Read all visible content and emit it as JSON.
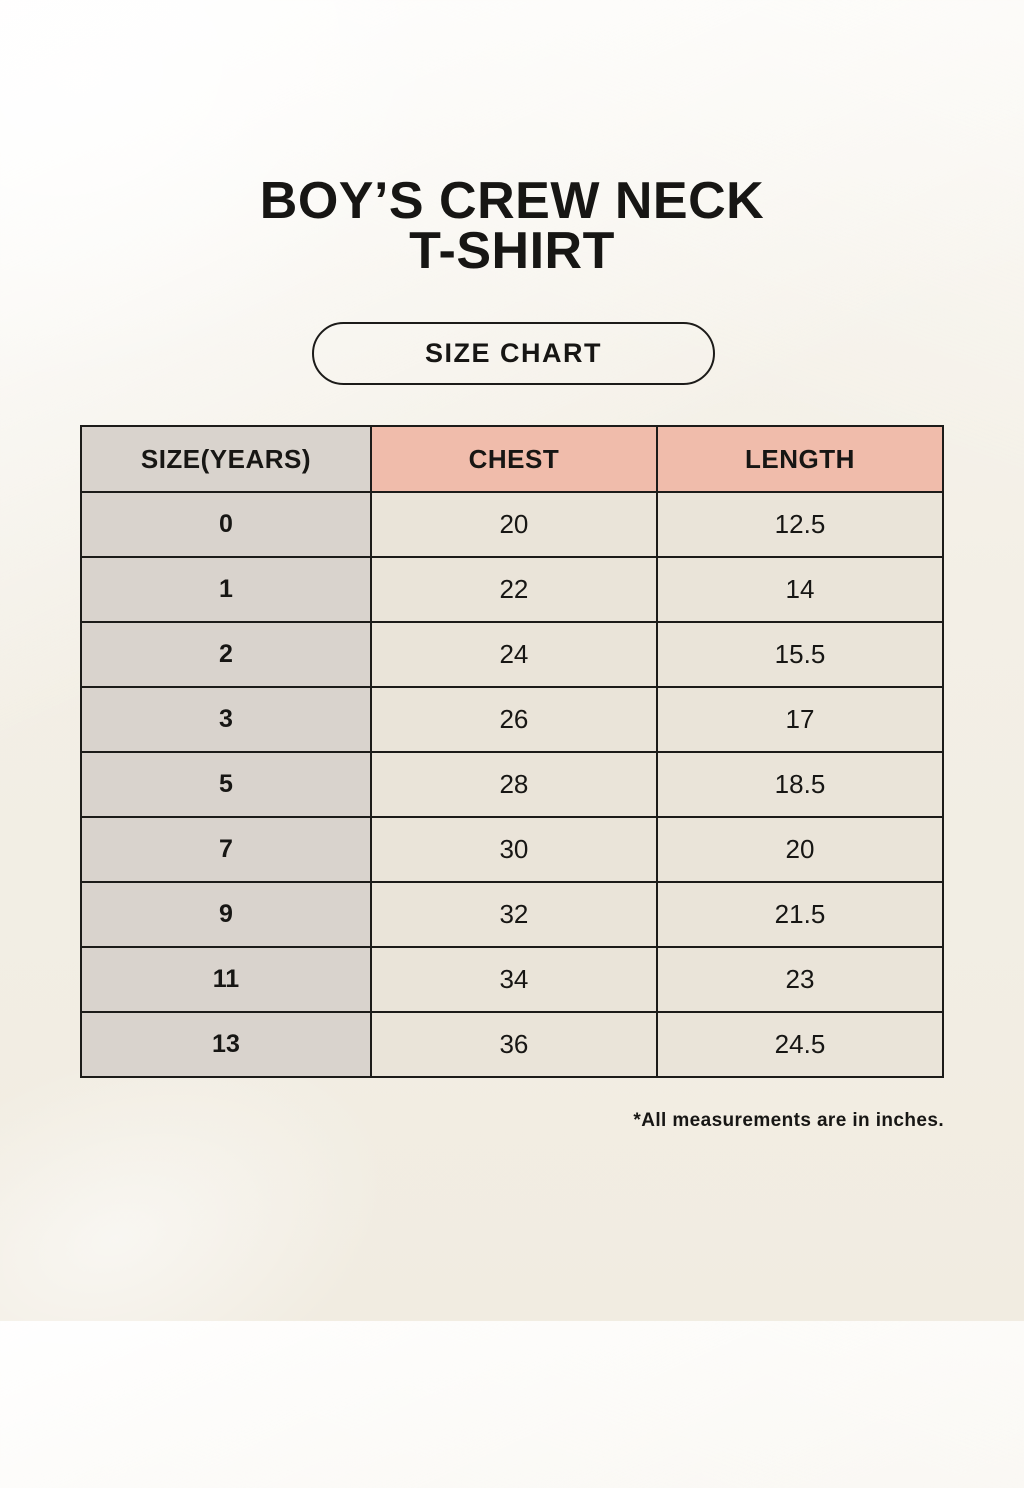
{
  "colors": {
    "page-bg": "#f3efe6",
    "header-pink": "#f0bcab",
    "header-gray": "#d9d3cd",
    "cell-cream": "#eae4d9",
    "border": "#1c1b19",
    "text": "#171614"
  },
  "header": {
    "title_line1": "BOY’S CREW NECK",
    "title_line2": "T-SHIRT",
    "badge_label": "SIZE CHART"
  },
  "size_table": {
    "columns": [
      "SIZE(YEARS)",
      "CHEST",
      "LENGTH"
    ],
    "rows": [
      {
        "size": "0",
        "chest": "20",
        "length": "12.5"
      },
      {
        "size": "1",
        "chest": "22",
        "length": "14"
      },
      {
        "size": "2",
        "chest": "24",
        "length": "15.5"
      },
      {
        "size": "3",
        "chest": "26",
        "length": "17"
      },
      {
        "size": "5",
        "chest": "28",
        "length": "18.5"
      },
      {
        "size": "7",
        "chest": "30",
        "length": "20"
      },
      {
        "size": "9",
        "chest": "32",
        "length": "21.5"
      },
      {
        "size": "11",
        "chest": "34",
        "length": "23"
      },
      {
        "size": "13",
        "chest": "36",
        "length": "24.5"
      }
    ]
  },
  "footnote": "*All measurements are in inches."
}
